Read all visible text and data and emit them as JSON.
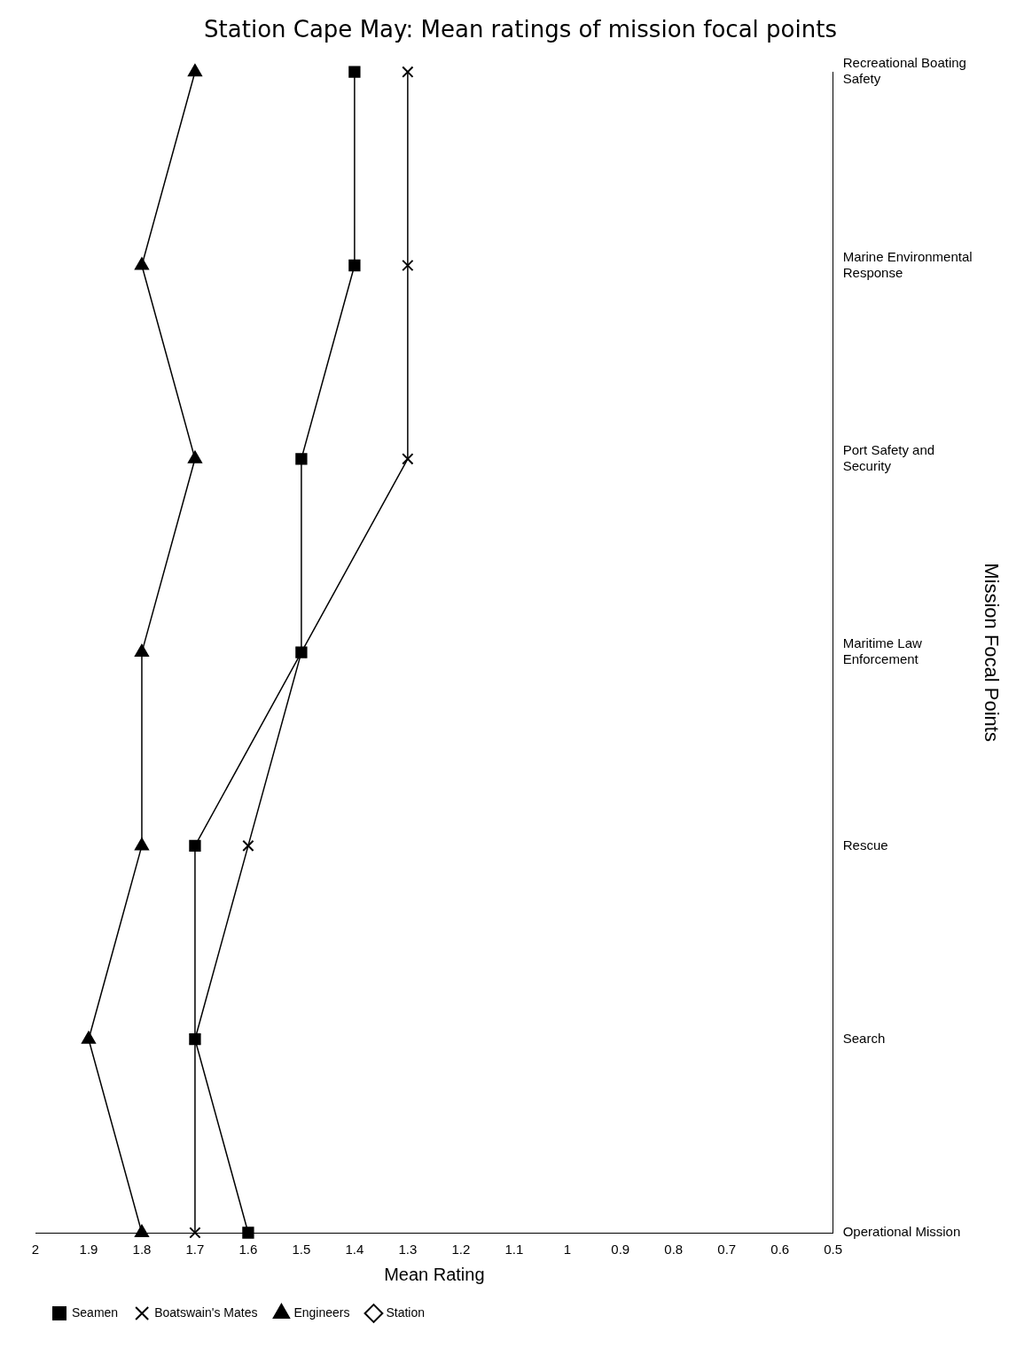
{
  "chart_data": {
    "type": "line",
    "orientation": "horizontal",
    "title": "Station Cape May: Mean ratings of mission focal points",
    "xlabel": "Mean Rating",
    "ylabel": "Mission Focal Points",
    "categories": [
      "Recreational Boating Safety",
      "Marine Environmental Response",
      "Port Safety and Security",
      "Maritime Law Enforcement",
      "Rescue",
      "Search",
      "Operational Mission"
    ],
    "series": [
      {
        "name": "Seamen",
        "color": "#000000",
        "marker": "square",
        "values": [
          1.4,
          1.4,
          1.5,
          1.5,
          1.7,
          1.7,
          1.6
        ]
      },
      {
        "name": "Boatswain's Mates",
        "color": "#000000",
        "marker": "cross",
        "values": [
          1.3,
          1.3,
          1.3,
          1.5,
          1.6,
          1.7,
          1.7
        ]
      },
      {
        "name": "Engineers",
        "color": "#000000",
        "marker": "triangle",
        "values": [
          1.7,
          1.8,
          1.7,
          1.8,
          1.8,
          1.9,
          1.8
        ]
      },
      {
        "name": "Station",
        "color": "#000000",
        "marker": "diamond",
        "values": [
          null,
          null,
          null,
          null,
          null,
          null,
          null
        ]
      }
    ],
    "xlim": [
      2,
      0.5
    ],
    "xticks": [
      2,
      1.9,
      1.8,
      1.7,
      1.6,
      1.5,
      1.4,
      1.3,
      1.2,
      1.1,
      1,
      0.9,
      0.8,
      0.7,
      0.6,
      0.5
    ],
    "grid": false,
    "legend": "bottom left",
    "line_style": "solid"
  }
}
